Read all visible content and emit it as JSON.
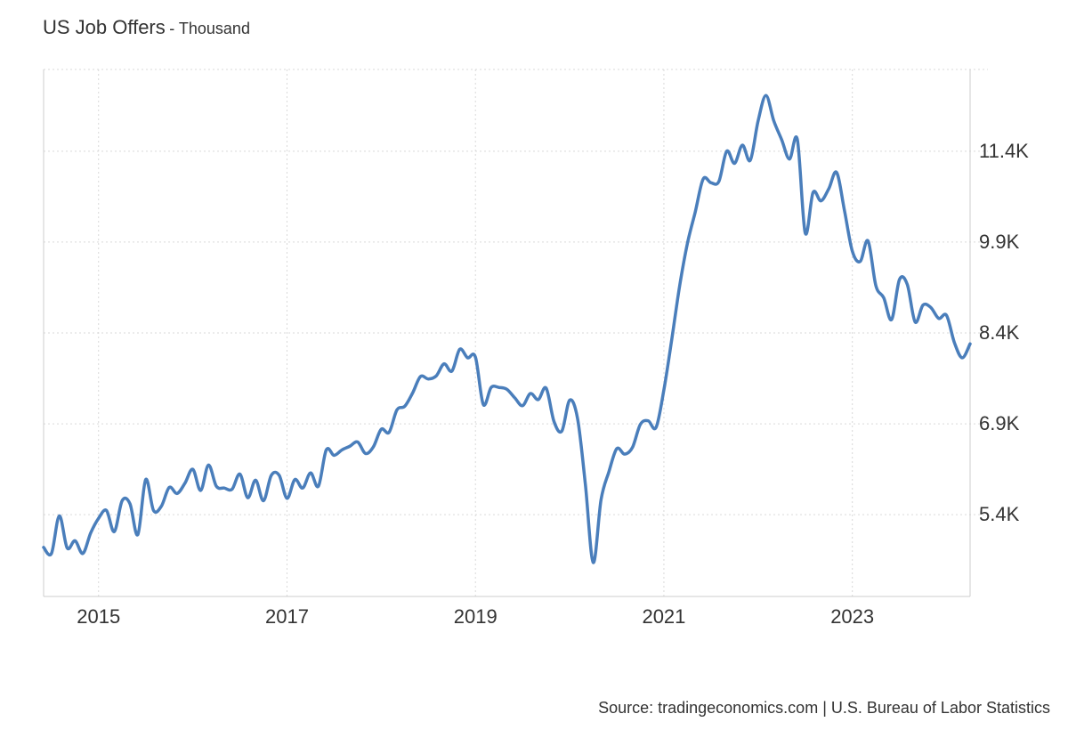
{
  "header": {
    "title": "US Job Offers",
    "subtitle": "- Thousand"
  },
  "source": "Source: tradingeconomics.com | U.S. Bureau of Labor Statistics",
  "chart_data": {
    "type": "line",
    "title": "US Job Offers",
    "unit": "Thousand",
    "xlabel": "",
    "ylabel": "",
    "xlim": [
      "2014-06",
      "2024-04"
    ],
    "ylim": [
      4050,
      12750
    ],
    "x_ticks": [
      "2015",
      "2017",
      "2019",
      "2021",
      "2023"
    ],
    "y_ticks": [
      {
        "value": 5400,
        "label": "5.4K"
      },
      {
        "value": 6900,
        "label": "6.9K"
      },
      {
        "value": 8400,
        "label": "8.4K"
      },
      {
        "value": 9900,
        "label": "9.9K"
      },
      {
        "value": 11400,
        "label": "11.4K"
      }
    ],
    "y_axis_position": "right",
    "grid": true,
    "legend": "none",
    "line_color": "#4a7ebb",
    "series": [
      {
        "x": [
          "2014-06",
          "2014-07",
          "2014-08",
          "2014-09",
          "2014-10",
          "2014-11",
          "2014-12",
          "2015-01",
          "2015-02",
          "2015-03",
          "2015-04",
          "2015-05",
          "2015-06",
          "2015-07",
          "2015-08",
          "2015-09",
          "2015-10",
          "2015-11",
          "2015-12",
          "2016-01",
          "2016-02",
          "2016-03",
          "2016-04",
          "2016-05",
          "2016-06",
          "2016-07",
          "2016-08",
          "2016-09",
          "2016-10",
          "2016-11",
          "2016-12",
          "2017-01",
          "2017-02",
          "2017-03",
          "2017-04",
          "2017-05",
          "2017-06",
          "2017-07",
          "2017-08",
          "2017-09",
          "2017-10",
          "2017-11",
          "2017-12",
          "2018-01",
          "2018-02",
          "2018-03",
          "2018-04",
          "2018-05",
          "2018-06",
          "2018-07",
          "2018-08",
          "2018-09",
          "2018-10",
          "2018-11",
          "2018-12",
          "2019-01",
          "2019-02",
          "2019-03",
          "2019-04",
          "2019-05",
          "2019-06",
          "2019-07",
          "2019-08",
          "2019-09",
          "2019-10",
          "2019-11",
          "2019-12",
          "2020-01",
          "2020-02",
          "2020-03",
          "2020-04",
          "2020-05",
          "2020-06",
          "2020-07",
          "2020-08",
          "2020-09",
          "2020-10",
          "2020-11",
          "2020-12",
          "2021-01",
          "2021-02",
          "2021-03",
          "2021-04",
          "2021-05",
          "2021-06",
          "2021-07",
          "2021-08",
          "2021-09",
          "2021-10",
          "2021-11",
          "2021-12",
          "2022-01",
          "2022-02",
          "2022-03",
          "2022-04",
          "2022-05",
          "2022-06",
          "2022-07",
          "2022-08",
          "2022-09",
          "2022-10",
          "2022-11",
          "2022-12",
          "2023-01",
          "2023-02",
          "2023-03",
          "2023-04",
          "2023-05",
          "2023-06",
          "2023-07",
          "2023-08",
          "2023-09",
          "2023-10",
          "2023-11",
          "2023-12",
          "2024-01",
          "2024-02",
          "2024-03",
          "2024-04"
        ],
        "y": [
          4860,
          4760,
          5380,
          4850,
          4970,
          4760,
          5100,
          5340,
          5470,
          5120,
          5630,
          5580,
          5070,
          5980,
          5470,
          5540,
          5850,
          5750,
          5920,
          6150,
          5800,
          6220,
          5870,
          5840,
          5820,
          6070,
          5680,
          5970,
          5630,
          6050,
          6050,
          5670,
          5980,
          5840,
          6090,
          5870,
          6470,
          6380,
          6470,
          6530,
          6600,
          6410,
          6520,
          6810,
          6760,
          7130,
          7190,
          7410,
          7680,
          7640,
          7690,
          7890,
          7770,
          8130,
          7990,
          8000,
          7220,
          7500,
          7500,
          7470,
          7330,
          7200,
          7400,
          7300,
          7490,
          6940,
          6780,
          7290,
          6990,
          5900,
          4610,
          5650,
          6110,
          6490,
          6400,
          6510,
          6890,
          6950,
          6840,
          7460,
          8290,
          9170,
          9880,
          10400,
          10940,
          10880,
          10900,
          11400,
          11200,
          11500,
          11250,
          11900,
          12320,
          11900,
          11590,
          11270,
          11590,
          10050,
          10720,
          10580,
          10780,
          11050,
          10420,
          9750,
          9580,
          9920,
          9180,
          8980,
          8620,
          9280,
          9200,
          8580,
          8860,
          8820,
          8640,
          8690,
          8240,
          7990,
          8220
        ]
      }
    ]
  }
}
